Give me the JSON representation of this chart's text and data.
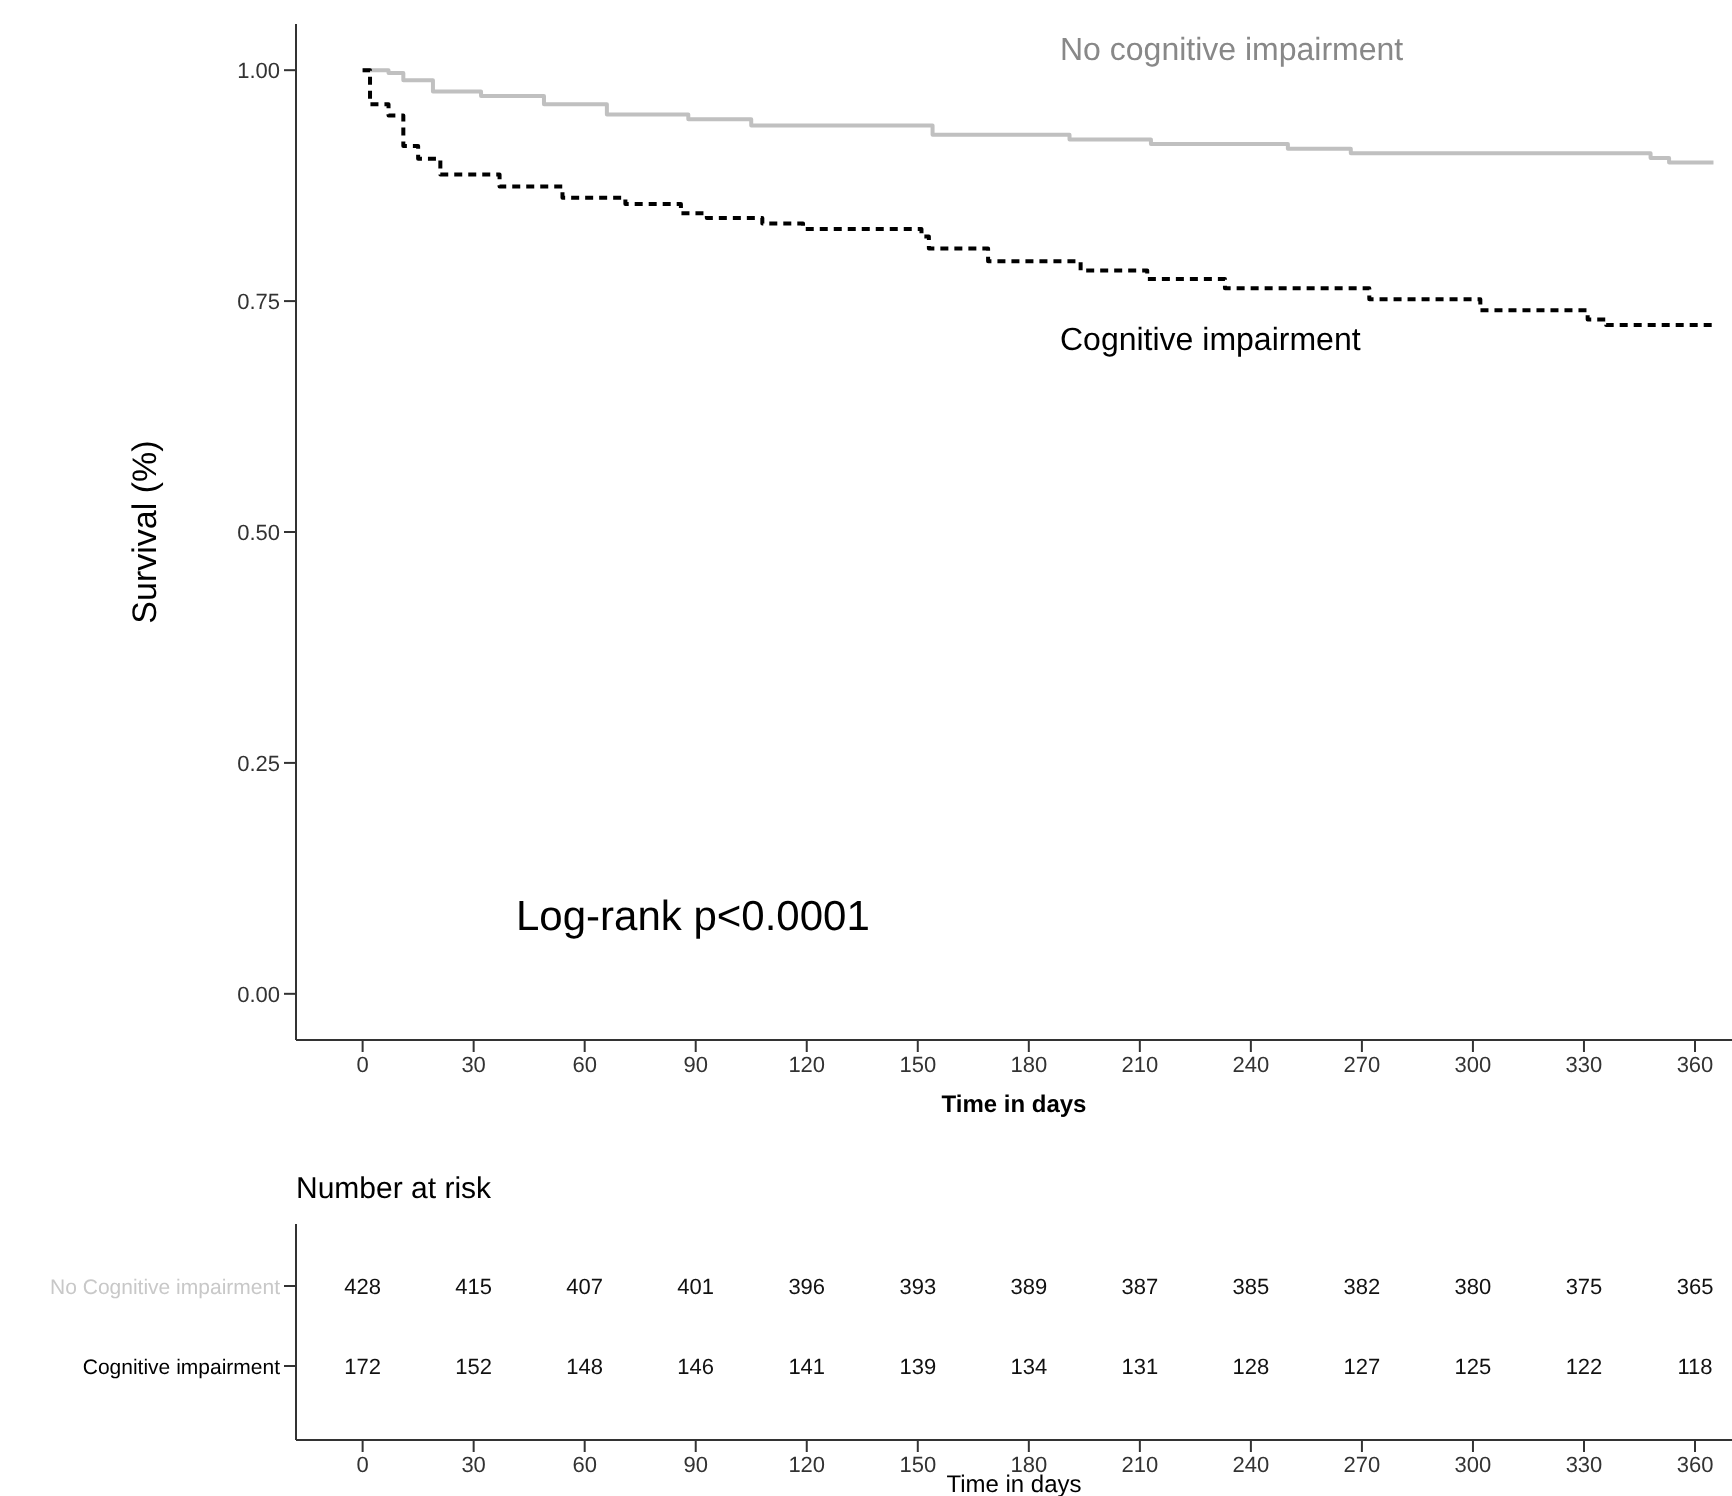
{
  "chart_data": [
    {
      "type": "step",
      "xlabel": "Time in days",
      "ylabel": "Survival (%)",
      "xlim": [
        -18,
        370
      ],
      "ylim": [
        -0.05,
        1.05
      ],
      "xticks": [
        0,
        30,
        60,
        90,
        120,
        150,
        180,
        210,
        240,
        270,
        300,
        330,
        360
      ],
      "yticks": [
        {
          "value": 0,
          "label": "0.00"
        },
        {
          "value": 0.25,
          "label": "0.25"
        },
        {
          "value": 0.5,
          "label": "0.50"
        },
        {
          "value": 0.75,
          "label": "0.75"
        },
        {
          "value": 1,
          "label": "1.00"
        }
      ],
      "annotations": [
        "Log-rank p<0.0001"
      ],
      "series": [
        {
          "name": "No cognitive impairment",
          "color": "#c0c0c0",
          "line_style": "solid",
          "x": [
            0,
            7,
            11,
            19,
            32,
            49,
            66,
            88,
            105,
            154,
            191,
            213,
            250,
            267,
            348,
            353,
            365
          ],
          "values": [
            1.0,
            0.997,
            0.989,
            0.977,
            0.972,
            0.963,
            0.952,
            0.947,
            0.94,
            0.93,
            0.925,
            0.92,
            0.915,
            0.91,
            0.905,
            0.9,
            0.9
          ]
        },
        {
          "name": "Cognitive impairment",
          "color": "#000000",
          "line_style": "dashed",
          "x": [
            0,
            2,
            7,
            11,
            15,
            21,
            37,
            54,
            71,
            86,
            93,
            108,
            119,
            151,
            153,
            169,
            194,
            212,
            233,
            272,
            302,
            331,
            336,
            365
          ],
          "values": [
            1.0,
            0.963,
            0.951,
            0.918,
            0.904,
            0.887,
            0.874,
            0.862,
            0.855,
            0.845,
            0.84,
            0.834,
            0.828,
            0.82,
            0.807,
            0.793,
            0.783,
            0.774,
            0.764,
            0.752,
            0.74,
            0.73,
            0.724,
            0.724
          ]
        }
      ]
    },
    {
      "type": "heatmap",
      "data_labels": true,
      "title": "Number at risk",
      "xlabel": "Time in days",
      "categories": [
        "0",
        "30",
        "60",
        "90",
        "120",
        "150",
        "180",
        "210",
        "240",
        "270",
        "300",
        "330",
        "360"
      ],
      "y_categories": [
        "No Cognitive impairment",
        "Cognitive impairment"
      ],
      "cells": [
        [
          428,
          415,
          407,
          401,
          396,
          393,
          389,
          387,
          385,
          382,
          380,
          375,
          365
        ],
        [
          172,
          152,
          148,
          146,
          141,
          139,
          134,
          131,
          128,
          127,
          125,
          122,
          118
        ]
      ]
    }
  ]
}
